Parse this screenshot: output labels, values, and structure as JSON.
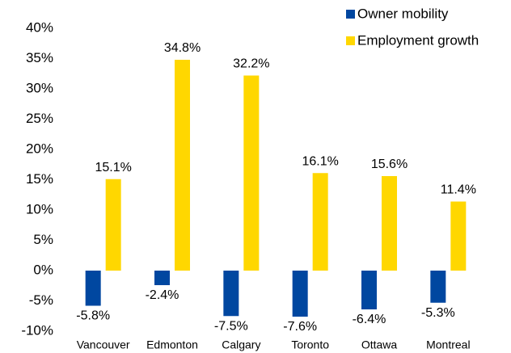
{
  "chart_data": {
    "type": "bar",
    "categories": [
      "Vancouver",
      "Edmonton",
      "Calgary",
      "Toronto",
      "Ottawa",
      "Montreal"
    ],
    "series": [
      {
        "name": "Owner mobility",
        "color": "#0047a0",
        "values": [
          -5.8,
          -2.4,
          -7.5,
          -7.6,
          -6.4,
          -5.3
        ],
        "value_labels": [
          "-5.8%",
          "-2.4%",
          "-7.5%",
          "-7.6%",
          "-6.4%",
          "-5.3%"
        ]
      },
      {
        "name": "Employment growth",
        "color": "#ffd700",
        "values": [
          15.1,
          34.8,
          32.2,
          16.1,
          15.6,
          11.4
        ],
        "value_labels": [
          "15.1%",
          "34.8%",
          "32.2%",
          "16.1%",
          "15.6%",
          "11.4%"
        ]
      }
    ],
    "ylim": [
      -10,
      40
    ],
    "yticks": [
      {
        "value": -10,
        "label": "-10%"
      },
      {
        "value": -5,
        "label": "-5%"
      },
      {
        "value": 0,
        "label": "0%"
      },
      {
        "value": 5,
        "label": "5%"
      },
      {
        "value": 10,
        "label": "10%"
      },
      {
        "value": 15,
        "label": "15%"
      },
      {
        "value": 20,
        "label": "20%"
      },
      {
        "value": 25,
        "label": "25%"
      },
      {
        "value": 30,
        "label": "30%"
      },
      {
        "value": 35,
        "label": "35%"
      },
      {
        "value": 40,
        "label": "40%"
      }
    ],
    "grid": false,
    "legend": "top-right"
  }
}
